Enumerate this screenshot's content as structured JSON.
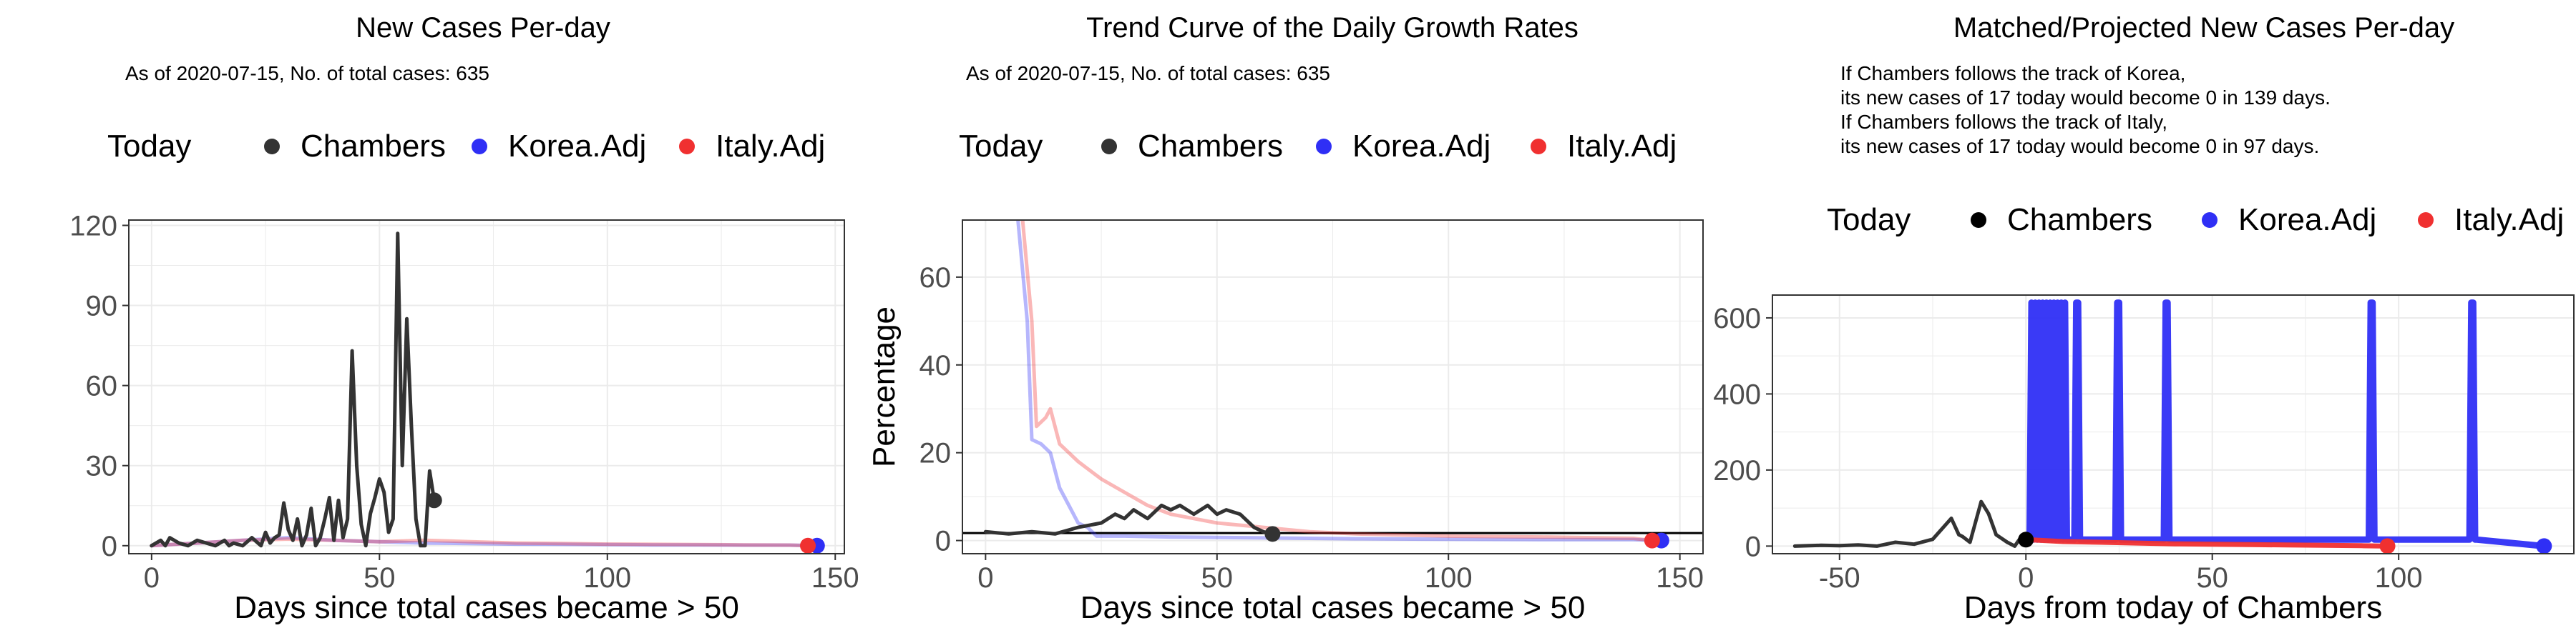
{
  "colors": {
    "chambers": "#333333",
    "chambers_dot": "#000000",
    "korea": "#2f2ff5",
    "italy": "#f03030",
    "grid": "#ebebeb",
    "panel_border": "#333333",
    "text": "#000000",
    "tick_text": "#4d4d4d"
  },
  "legend": {
    "title": "Today",
    "entries": [
      "Chambers",
      "Korea.Adj",
      "Italy.Adj"
    ]
  },
  "chart_data": [
    {
      "type": "line",
      "title": "New Cases Per-day",
      "subtitle": "As of 2020-07-15, No. of total cases: 635",
      "xlabel": "Days since total cases became > 50",
      "ylabel": "",
      "xlim": [
        -5,
        152
      ],
      "ylim": [
        -3,
        122
      ],
      "xticks": [
        0,
        50,
        100,
        150
      ],
      "yticks": [
        0,
        30,
        60,
        90,
        120
      ],
      "grid": true,
      "legend_position": "top",
      "series": [
        {
          "name": "Chambers",
          "x": [
            0,
            2,
            3,
            4,
            6,
            8,
            10,
            12,
            14,
            16,
            17,
            18,
            20,
            22,
            24,
            25,
            26,
            27,
            28,
            29,
            30,
            31,
            32,
            33,
            34,
            35,
            36,
            37,
            38,
            39,
            40,
            41,
            42,
            43,
            44,
            45,
            46,
            47,
            48,
            49,
            50,
            51,
            52,
            53,
            54,
            55,
            56,
            57,
            58,
            59,
            60,
            61,
            62
          ],
          "values": [
            0,
            2,
            0,
            3,
            1,
            0,
            2,
            1,
            0,
            2,
            0,
            1,
            0,
            3,
            0,
            5,
            1,
            3,
            4,
            16,
            6,
            2,
            10,
            0,
            4,
            14,
            0,
            3,
            10,
            18,
            2,
            17,
            3,
            10,
            73,
            30,
            8,
            0,
            12,
            18,
            25,
            20,
            5,
            10,
            117,
            30,
            85,
            45,
            10,
            0,
            0,
            28,
            17
          ]
        },
        {
          "name": "Korea.Adj",
          "x": [
            0,
            10,
            20,
            30,
            40,
            50,
            60,
            70,
            80,
            90,
            100,
            110,
            120,
            130,
            140,
            146
          ],
          "values": [
            0,
            1,
            2,
            3,
            2,
            1.5,
            1,
            0.8,
            0.6,
            0.5,
            0.4,
            0.3,
            0.3,
            0.2,
            0.2,
            0
          ]
        },
        {
          "name": "Italy.Adj",
          "x": [
            0,
            10,
            20,
            30,
            40,
            50,
            60,
            70,
            80,
            90,
            100,
            110,
            120,
            130,
            140,
            144
          ],
          "values": [
            0,
            1,
            2,
            2.5,
            2,
            1.5,
            2,
            1.5,
            1,
            0.8,
            0.6,
            0.5,
            0.4,
            0.3,
            0.2,
            0
          ]
        }
      ],
      "today_points": [
        {
          "series": "Chambers",
          "x": 62,
          "y": 17
        },
        {
          "series": "Korea.Adj",
          "x": 146,
          "y": 0
        },
        {
          "series": "Italy.Adj",
          "x": 144,
          "y": 0
        }
      ]
    },
    {
      "type": "line",
      "title": "Trend Curve of the Daily Growth Rates",
      "subtitle": "As of 2020-07-15, No. of total cases: 635",
      "xlabel": "Days since total cases became > 50",
      "ylabel": "Percentage",
      "xlim": [
        -5,
        155
      ],
      "ylim": [
        -3,
        73
      ],
      "xticks": [
        0,
        50,
        100,
        150
      ],
      "yticks": [
        0,
        20,
        40,
        60
      ],
      "grid": true,
      "legend_position": "top",
      "hline": 1.7,
      "series": [
        {
          "name": "Chambers",
          "x": [
            0,
            5,
            10,
            15,
            20,
            25,
            28,
            30,
            32,
            35,
            38,
            40,
            42,
            45,
            48,
            50,
            52,
            55,
            58,
            60,
            62
          ],
          "values": [
            2,
            1.5,
            2,
            1.5,
            3,
            4,
            6,
            5,
            7,
            5,
            8,
            7,
            8,
            6,
            8,
            6,
            7,
            6,
            3,
            2,
            1.5
          ]
        },
        {
          "name": "Korea.Adj",
          "x": [
            7,
            9,
            10,
            12,
            14,
            16,
            18,
            20,
            22,
            24,
            30,
            40,
            60,
            80,
            100,
            120,
            140,
            146
          ],
          "values": [
            73,
            50,
            23,
            22,
            20,
            12,
            8,
            4,
            3,
            1,
            1,
            0.8,
            0.6,
            0.4,
            0.3,
            0.2,
            0.2,
            0
          ]
        },
        {
          "name": "Italy.Adj",
          "x": [
            8,
            10,
            11,
            13,
            14,
            16,
            20,
            25,
            30,
            35,
            40,
            45,
            50,
            60,
            70,
            80,
            100,
            120,
            140,
            144
          ],
          "values": [
            73,
            50,
            26,
            28,
            30,
            22,
            18,
            14,
            11,
            8,
            6,
            5,
            4,
            3,
            2,
            1.5,
            1,
            0.8,
            0.5,
            0
          ]
        }
      ],
      "today_points": [
        {
          "series": "Chambers",
          "x": 62,
          "y": 1.5
        },
        {
          "series": "Korea.Adj",
          "x": 146,
          "y": 0
        },
        {
          "series": "Italy.Adj",
          "x": 144,
          "y": 0
        }
      ]
    },
    {
      "type": "line",
      "title": "Matched/Projected New Cases Per-day",
      "subtitle_lines": [
        "If Chambers follows the track of Korea,",
        "its new cases of 17 today would become 0 in 139 days.",
        "If Chambers follows the track of Italy,",
        "its new cases of 17 today would become 0 in 97 days."
      ],
      "xlabel": "Days from today of Chambers",
      "ylabel": "",
      "xlim": [
        -68,
        147
      ],
      "ylim": [
        -20,
        660
      ],
      "xticks": [
        -50,
        0,
        50,
        100
      ],
      "yticks": [
        0,
        200,
        400,
        600
      ],
      "grid": true,
      "legend_position": "top",
      "series": [
        {
          "name": "Chambers",
          "x": [
            -62,
            -55,
            -50,
            -45,
            -40,
            -35,
            -30,
            -25,
            -20,
            -18,
            -17,
            -15,
            -12,
            -10,
            -8,
            -5,
            -3,
            -1,
            0
          ],
          "values": [
            0,
            2,
            1,
            3,
            0,
            10,
            5,
            18,
            73,
            30,
            25,
            10,
            117,
            85,
            30,
            10,
            0,
            28,
            17
          ]
        },
        {
          "name": "Korea.Adj",
          "x": [
            0,
            1,
            1.5,
            2,
            2.5,
            3,
            3.5,
            4,
            4.5,
            5,
            5.5,
            6,
            6.5,
            7,
            7.5,
            8,
            8.5,
            9,
            9.5,
            10,
            10.5,
            11,
            13,
            13.5,
            14,
            14.5,
            15,
            24,
            24.5,
            25,
            25.5,
            26,
            37,
            37.5,
            38,
            38.5,
            39,
            92,
            92.5,
            93,
            93.5,
            94,
            119,
            119.5,
            120,
            120.5,
            121,
            139
          ],
          "values": [
            17,
            17,
            640,
            17,
            640,
            17,
            640,
            17,
            640,
            17,
            640,
            17,
            640,
            17,
            640,
            17,
            640,
            17,
            640,
            17,
            640,
            17,
            17,
            640,
            640,
            17,
            17,
            17,
            640,
            640,
            17,
            17,
            17,
            640,
            640,
            17,
            17,
            17,
            640,
            640,
            17,
            17,
            17,
            640,
            640,
            17,
            17,
            0
          ]
        },
        {
          "name": "Italy.Adj",
          "x": [
            0,
            10,
            20,
            30,
            40,
            50,
            60,
            70,
            80,
            90,
            97
          ],
          "values": [
            17,
            12,
            10,
            8,
            6,
            5,
            4,
            3,
            2,
            1,
            0
          ]
        }
      ],
      "today_points": [
        {
          "series": "Chambers",
          "x": 0,
          "y": 17
        },
        {
          "series": "Korea.Adj",
          "x": 139,
          "y": 0
        },
        {
          "series": "Italy.Adj",
          "x": 97,
          "y": 0
        }
      ]
    }
  ]
}
